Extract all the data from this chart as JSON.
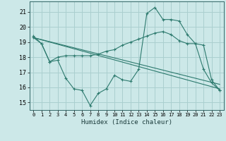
{
  "xlabel": "Humidex (Indice chaleur)",
  "bg_color": "#cce8e8",
  "grid_color": "#aacfcf",
  "line_color": "#2d7a6e",
  "xlim": [
    -0.5,
    23.5
  ],
  "ylim": [
    14.5,
    21.7
  ],
  "yticks": [
    15,
    16,
    17,
    18,
    19,
    20,
    21
  ],
  "xticks": [
    0,
    1,
    2,
    3,
    4,
    5,
    6,
    7,
    8,
    9,
    10,
    11,
    12,
    13,
    14,
    15,
    16,
    17,
    18,
    19,
    20,
    21,
    22,
    23
  ],
  "series1_x": [
    0,
    1,
    2,
    3,
    4,
    5,
    6,
    7,
    8,
    9,
    10,
    11,
    12,
    13,
    14,
    15,
    16,
    17,
    18,
    19,
    20,
    21,
    22,
    23
  ],
  "series1_y": [
    19.4,
    18.9,
    17.7,
    17.8,
    16.6,
    15.9,
    15.8,
    14.8,
    15.6,
    15.9,
    16.8,
    16.5,
    16.4,
    17.2,
    20.9,
    21.3,
    20.5,
    20.5,
    20.4,
    19.5,
    18.9,
    17.2,
    16.3,
    15.8
  ],
  "series2_x": [
    0,
    1,
    2,
    3,
    4,
    5,
    6,
    7,
    8,
    9,
    10,
    11,
    12,
    13,
    14,
    15,
    16,
    17,
    18,
    19,
    20,
    21,
    22,
    23
  ],
  "series2_y": [
    19.3,
    18.9,
    17.7,
    18.0,
    18.1,
    18.1,
    18.1,
    18.1,
    18.2,
    18.4,
    18.5,
    18.8,
    19.0,
    19.2,
    19.4,
    19.6,
    19.7,
    19.5,
    19.1,
    18.9,
    18.9,
    18.8,
    16.5,
    15.8
  ],
  "series3_x": [
    0,
    23
  ],
  "series3_y": [
    19.3,
    15.9
  ],
  "series4_x": [
    0,
    23
  ],
  "series4_y": [
    19.3,
    16.2
  ]
}
